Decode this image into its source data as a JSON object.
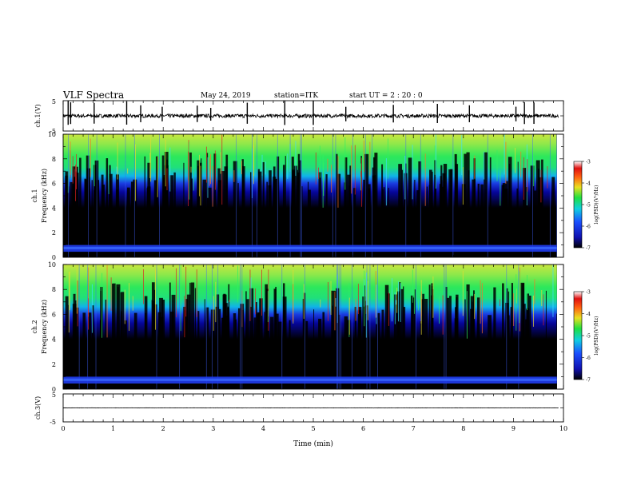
{
  "header": {
    "title": "VLF Spectra",
    "date": "May 24, 2019",
    "station": "station=ITK",
    "start": "start  UT  =   2  : 20 : 0"
  },
  "chart_data": [
    {
      "type": "line",
      "ylabel": "ch.1(V)",
      "ylim": [
        -5,
        5
      ],
      "yticks": [
        "5",
        "-5"
      ],
      "baseline": 0,
      "noise_amplitude": 0.6,
      "spikes_x": [
        0.1,
        0.15,
        0.62,
        1.27,
        1.55,
        1.98,
        2.68,
        2.95,
        3.68,
        4.43,
        5.0,
        5.65,
        6.6,
        7.48,
        8.12,
        9.05,
        9.22,
        9.41
      ]
    },
    {
      "type": "heatmap",
      "ylabel": "ch.1",
      "ylabel2": "Frequency (kHz)",
      "ylim": [
        0,
        10
      ],
      "yticks": [
        "0",
        "2",
        "4",
        "6",
        "8",
        "10"
      ],
      "colorbar": {
        "label": "log(PSD)(V²/Hz)",
        "range": [
          -7,
          -3
        ],
        "ticks": [
          "-3",
          "-4",
          "-5",
          "-6",
          "-7"
        ]
      }
    },
    {
      "type": "heatmap",
      "ylabel": "ch.2",
      "ylabel2": "Frequency (kHz)",
      "ylim": [
        0,
        10
      ],
      "yticks": [
        "0",
        "2",
        "4",
        "6",
        "8",
        "10"
      ],
      "colorbar": {
        "label": "log(PSD)(V²/Hz)",
        "range": [
          -7,
          -3
        ],
        "ticks": [
          "-3",
          "-4",
          "-5",
          "-6",
          "-7"
        ]
      }
    },
    {
      "type": "line",
      "ylabel": "ch.3(V)",
      "ylim": [
        -5,
        5
      ],
      "yticks": [
        "5",
        "-5"
      ],
      "baseline": 0,
      "noise_amplitude": 0.05,
      "spikes_x": []
    }
  ],
  "xaxis": {
    "label": "Time  (min)",
    "xlim": [
      0,
      10
    ],
    "ticks": [
      "0",
      "1",
      "2",
      "3",
      "4",
      "5",
      "6",
      "7",
      "8",
      "9",
      "10"
    ]
  }
}
